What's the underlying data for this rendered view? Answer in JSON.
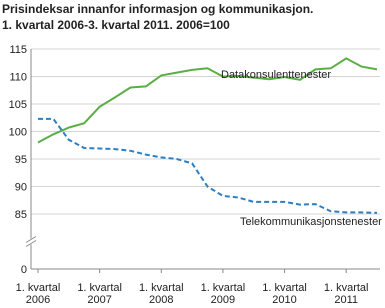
{
  "chart_data": {
    "type": "line",
    "title": "Prisindeksar innanfor informasjon og kommunikasjon.",
    "subtitle": "1. kvartal 2006-3. kvartal 2011. 2006=100",
    "categories": [
      "1. kvartal 2006",
      null,
      null,
      null,
      "1. kvartal 2007",
      null,
      null,
      null,
      "1. kvartal 2008",
      null,
      null,
      null,
      "1. kvartal 2009",
      null,
      null,
      null,
      "1. kvartal 2010",
      null,
      null,
      null,
      "1. kvartal 2011",
      null,
      null
    ],
    "series": [
      {
        "name": "Datakonsulenttenester",
        "color": "#5aae46",
        "dashed": false,
        "values": [
          98,
          99.5,
          100.7,
          101.5,
          104.5,
          106.2,
          108,
          108.2,
          110.2,
          110.7,
          111.2,
          111.5,
          110,
          110.1,
          109.8,
          109.5,
          109.9,
          109.4,
          111.3,
          111.5,
          113.3,
          111.8,
          111.3
        ]
      },
      {
        "name": "Telekommunikasjonstenester",
        "color": "#2d7fc1",
        "dashed": true,
        "values": [
          102.3,
          102.3,
          98.5,
          97,
          96.9,
          96.8,
          96.5,
          95.8,
          95.3,
          95,
          94.2,
          90,
          88.3,
          88,
          87.2,
          87.2,
          87.2,
          86.7,
          86.8,
          85.5,
          85.3,
          85.3,
          85.2
        ]
      }
    ],
    "ylim": [
      0,
      115
    ],
    "yticks": [
      0,
      85,
      90,
      95,
      100,
      105,
      110,
      115
    ],
    "axis_break": true,
    "grid": true
  }
}
